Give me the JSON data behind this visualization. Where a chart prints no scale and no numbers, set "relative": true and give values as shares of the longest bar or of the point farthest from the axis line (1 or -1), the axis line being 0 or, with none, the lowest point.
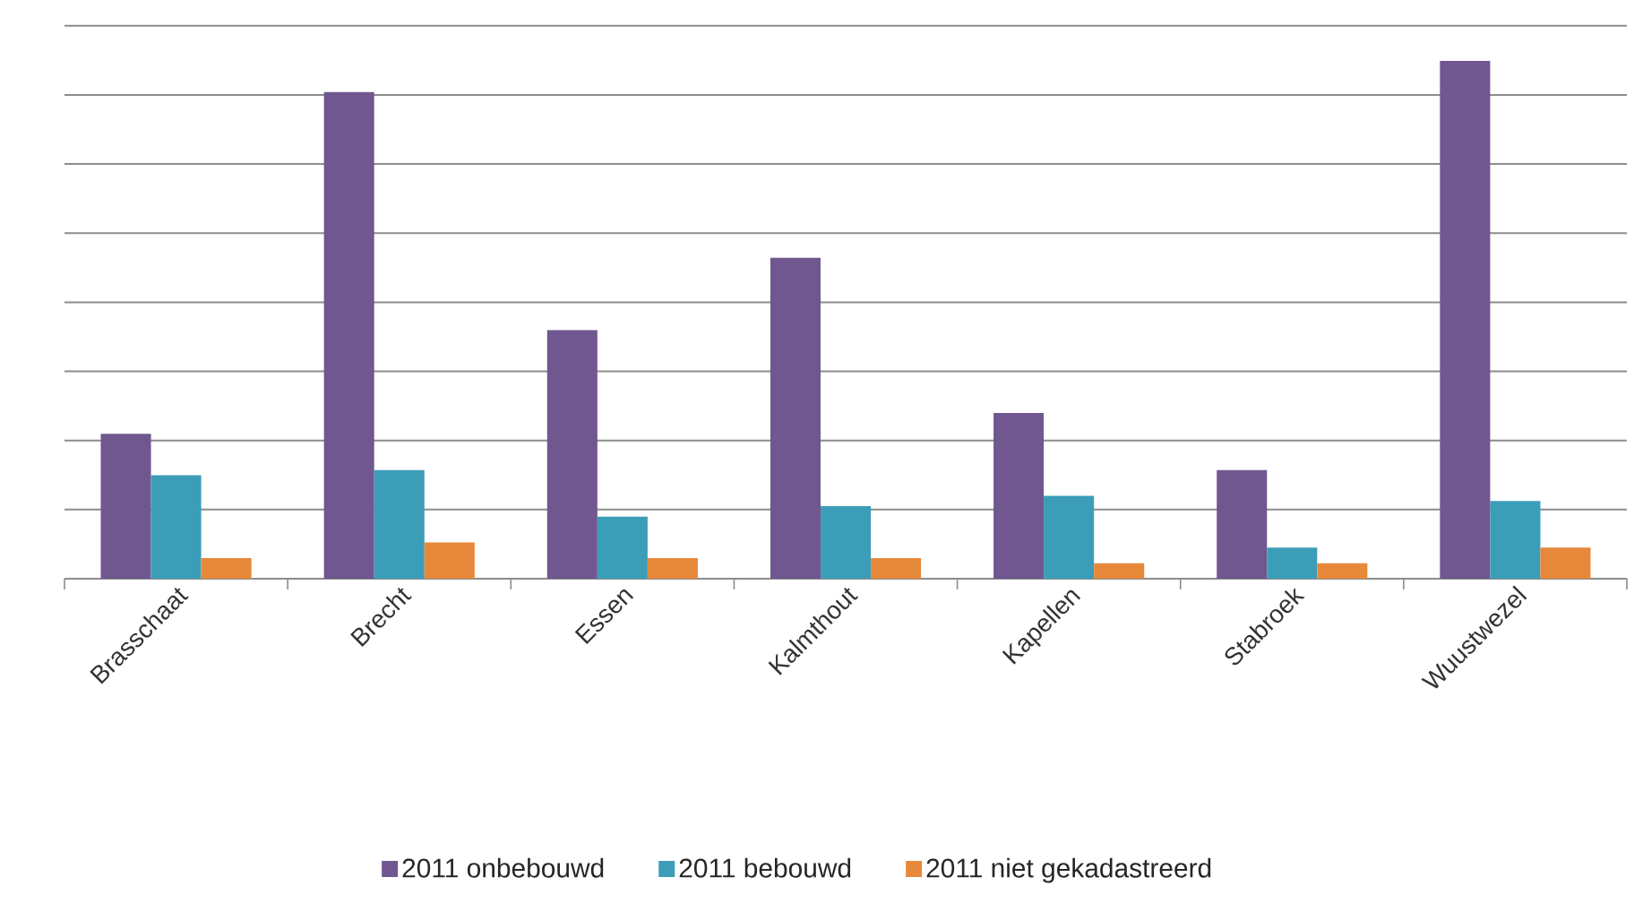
{
  "chart_data": {
    "type": "bar",
    "relative": true,
    "categories": [
      "Brasschaat",
      "Brecht",
      "Essen",
      "Kalmthout",
      "Kapellen",
      "Stabroek",
      "Wuustwezel"
    ],
    "series": [
      {
        "name": "2011 onbebouwd",
        "color": "#70578f",
        "values": [
          0.28,
          0.94,
          0.48,
          0.62,
          0.32,
          0.21,
          1
        ]
      },
      {
        "name": "2011 bebouwd",
        "color": "#3c9db8",
        "values": [
          0.2,
          0.21,
          0.12,
          0.14,
          0.16,
          0.06,
          0.15
        ]
      },
      {
        "name": "2011 niet gekadastreerd",
        "color": "#e6893a",
        "values": [
          0.04,
          0.07,
          0.04,
          0.04,
          0.03,
          0.03,
          0.06
        ]
      }
    ],
    "grid": "y",
    "legend": "bottom"
  }
}
